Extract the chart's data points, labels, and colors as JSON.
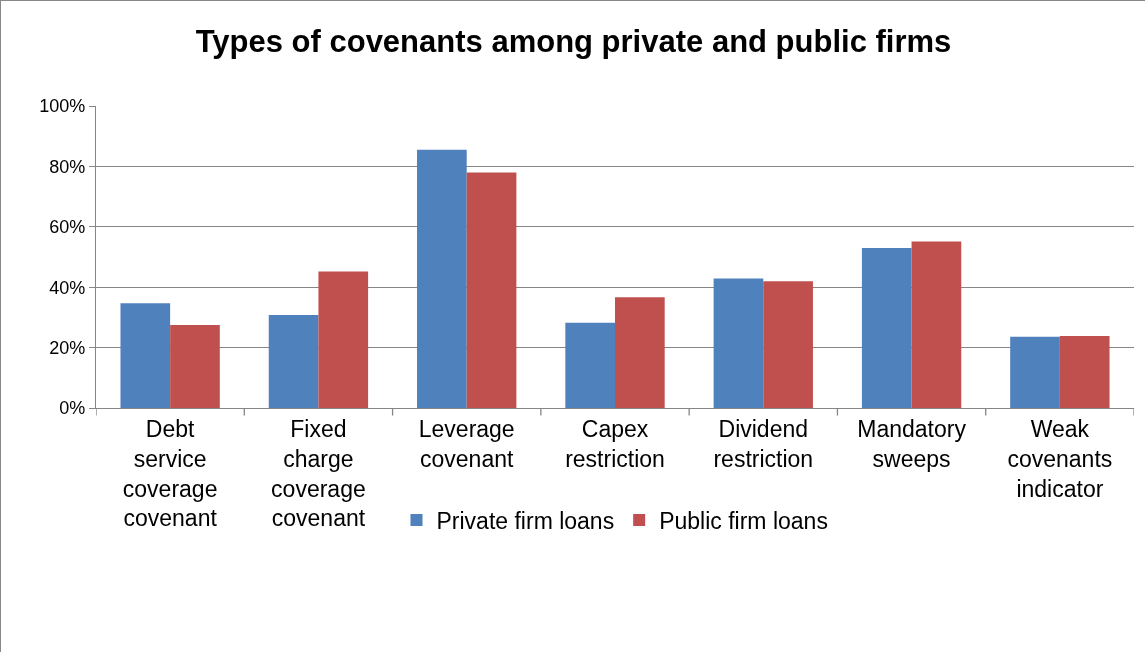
{
  "chart_data": {
    "type": "bar",
    "title": "Types of covenants among private and public firms",
    "categories": [
      "Debt service coverage covenant",
      "Fixed charge coverage covenant",
      "Leverage covenant",
      "Capex restriction",
      "Dividend restriction",
      "Mandatory sweeps",
      "Weak covenants indicator"
    ],
    "series": [
      {
        "name": "Private firm loans",
        "color": "#4f81bd",
        "values": [
          34.7,
          30.8,
          85.5,
          28.2,
          42.9,
          53.0,
          23.6
        ]
      },
      {
        "name": "Public firm loans",
        "color": "#c0504d",
        "values": [
          27.5,
          45.2,
          78.0,
          36.7,
          42.0,
          55.1,
          23.8
        ]
      }
    ],
    "ylim": [
      0,
      100
    ],
    "yticks": [
      {
        "value": 0,
        "label": "0%"
      },
      {
        "value": 20,
        "label": "20%"
      },
      {
        "value": 40,
        "label": "40%"
      },
      {
        "value": 60,
        "label": "60%"
      },
      {
        "value": 80,
        "label": "80%"
      },
      {
        "value": 100,
        "label": "100%"
      }
    ],
    "grid": "y",
    "legend": "bottom"
  }
}
